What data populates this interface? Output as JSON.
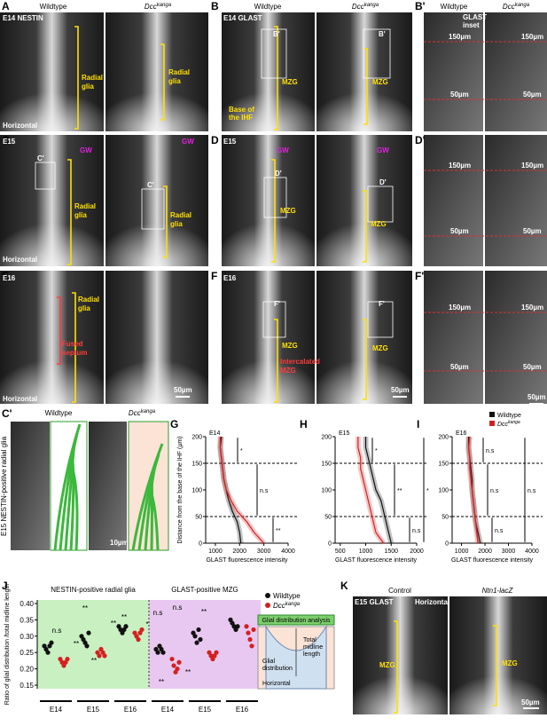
{
  "panels": {
    "A": {
      "label": "A",
      "header": [
        "Wildtype",
        {
          "base": "Dcc",
          "sup": "kanga"
        }
      ],
      "texts": [
        "E14 NESTIN",
        "Radial",
        "glia",
        "Radial",
        "glia",
        "Horizontal"
      ]
    },
    "B": {
      "label": "B",
      "header": [
        "Wildtype",
        {
          "base": "Dcc",
          "sup": "kanga"
        }
      ],
      "texts": [
        "E14 GLAST",
        "B'",
        "B'",
        "MZG",
        "MZG",
        "Base of",
        "the IHF"
      ]
    },
    "B_inset": {
      "label": "B'",
      "header": [
        "Wildtype",
        {
          "base": "Dcc",
          "sup": "kanga"
        }
      ],
      "texts": [
        "GLAST",
        "inset",
        "150µm",
        "150µm",
        "50µm",
        "50µm"
      ]
    },
    "C": {
      "label": "C",
      "texts": [
        "E15",
        "C'",
        "C'",
        "GW",
        "GW",
        "Radial",
        "glia",
        "Radial",
        "glia",
        "Horizontal"
      ]
    },
    "D": {
      "label": "D",
      "texts": [
        "E15",
        "GW",
        "GW",
        "D'",
        "D'",
        "MZG",
        "MZG"
      ]
    },
    "D_inset": {
      "label": "D'",
      "texts": [
        "150µm",
        "150µm",
        "50µm",
        "50µm"
      ]
    },
    "E": {
      "label": "E",
      "texts": [
        "E16",
        "Radial",
        "glia",
        "Fused",
        "septum",
        "Horizontal",
        "50µm"
      ]
    },
    "F": {
      "label": "F",
      "texts": [
        "E16",
        "F'",
        "F'",
        "MZG",
        "MZG",
        "Intercalated",
        "MZG",
        "50µm"
      ]
    },
    "F_inset": {
      "label": "F'",
      "texts": [
        "150µm",
        "150µm",
        "50µm",
        "50µm",
        "50µm"
      ]
    },
    "C_inset": {
      "label": "C'",
      "header": [
        "Wildtype",
        {
          "base": "Dcc",
          "sup": "kanga"
        }
      ],
      "texts": [
        "E15 NESTIN-positive radial glia",
        "10µm"
      ]
    },
    "schematic": {
      "title": "Glial distribution analysis",
      "texts": [
        "Total",
        "midline",
        "length",
        "Glial",
        "distribution",
        "Horizontal"
      ]
    },
    "K": {
      "label": "K",
      "header": [
        "Control",
        "Ntn1-lacZ"
      ],
      "texts": [
        "E15 GLAST",
        "Horizontal",
        "MZG",
        "MZG",
        "50µm"
      ]
    }
  },
  "chart_data": [
    {
      "type": "profile",
      "label": "G",
      "subtitle": "E14",
      "ylabel": "Distance from the base of the IHF (µm)",
      "xlabel": "GLAST fluorescence intensity",
      "y": [
        0,
        20,
        40,
        60,
        80,
        100,
        120,
        140,
        160,
        180,
        200
      ],
      "series": [
        {
          "color": "#111111",
          "values": [
            2050,
            2000,
            1900,
            1700,
            1550,
            1450,
            1350,
            1300,
            1250,
            1200,
            1250
          ]
        },
        {
          "color": "#d42020",
          "values": [
            3000,
            2600,
            2300,
            1900,
            1650,
            1450,
            1350,
            1300,
            1250,
            1200,
            1200
          ]
        }
      ],
      "xlim": [
        600,
        4000
      ],
      "xticks": [
        1000,
        2000,
        3000,
        4000
      ],
      "ylim": [
        0,
        200
      ],
      "yticks": [
        0,
        50,
        100,
        150,
        200
      ],
      "reference_lines": [
        50,
        150
      ],
      "annotations": [
        "*",
        "n.s",
        "**"
      ]
    },
    {
      "type": "profile",
      "label": "H",
      "subtitle": "E15",
      "xlabel": "GLAST fluorescence intensity",
      "y": [
        0,
        20,
        40,
        60,
        80,
        100,
        120,
        140,
        160,
        180,
        200
      ],
      "series": [
        {
          "color": "#111111",
          "values": [
            1500,
            1450,
            1400,
            1350,
            1300,
            1200,
            1150,
            1100,
            1050,
            1000,
            1000
          ]
        },
        {
          "color": "#d42020",
          "values": [
            1350,
            1200,
            1150,
            1100,
            1050,
            1000,
            950,
            900,
            900,
            850,
            850
          ]
        }
      ],
      "xlim": [
        400,
        2000
      ],
      "xticks": [
        500,
        1000,
        1500,
        2000
      ],
      "ylim": [
        0,
        200
      ],
      "yticks": [
        0,
        50,
        100,
        150,
        200
      ],
      "reference_lines": [
        50,
        150
      ],
      "annotations": [
        "*",
        "**",
        "n.s",
        "*"
      ]
    },
    {
      "type": "profile",
      "label": "I",
      "subtitle": "E16",
      "xlabel": "GLAST fluorescence intensity",
      "y": [
        0,
        20,
        40,
        60,
        80,
        100,
        120,
        140,
        160,
        180,
        200
      ],
      "series": [
        {
          "name": "Wildtype",
          "color": "#111111",
          "values": [
            1800,
            1700,
            1600,
            1550,
            1500,
            1450,
            1450,
            1400,
            1350,
            1300,
            1300
          ]
        },
        {
          "name": {
            "base": "Dcc",
            "sup": "kanga"
          },
          "color": "#d42020",
          "values": [
            1700,
            1650,
            1600,
            1550,
            1500,
            1450,
            1400,
            1350,
            1350,
            1300,
            1350
          ]
        }
      ],
      "xlim": [
        600,
        4000
      ],
      "xticks": [
        1000,
        2000,
        3000,
        4000
      ],
      "ylim": [
        0,
        200
      ],
      "yticks": [
        0,
        50,
        100,
        150,
        200
      ],
      "reference_lines": [
        50,
        150
      ],
      "annotations": [
        "n.s",
        "n.s",
        "n.s",
        "n.s"
      ]
    },
    {
      "type": "dot",
      "label": "J",
      "ylabel": "Ratio of glial distribution /total midline length",
      "series": [
        {
          "name": "Wildtype",
          "color": "#111111"
        },
        {
          "name": {
            "base": "Dcc",
            "sup": "kanga"
          },
          "color": "#d42020"
        }
      ],
      "groups": [
        {
          "title": "NESTIN-positive radial glia",
          "background": "#c8f0c0",
          "categories": [
            "E14",
            "E15",
            "E16"
          ],
          "values": [
            [
              [
                0.27,
                0.26,
                0.25,
                0.27,
                0.28
              ],
              [
                0.3,
                0.29,
                0.28,
                0.27,
                0.31
              ],
              [
                0.33,
                0.32,
                0.31,
                0.32,
                0.33
              ]
            ],
            [
              [
                0.23,
                0.22,
                0.21,
                0.22,
                0.23
              ],
              [
                0.25,
                0.24,
                0.26,
                0.25,
                0.24
              ],
              [
                0.31,
                0.3,
                0.29,
                0.31,
                0.32
              ]
            ]
          ]
        },
        {
          "title": "GLAST-positive MZG",
          "background": "#e8c8f0",
          "categories": [
            "E14",
            "E15",
            "E16"
          ],
          "values": [
            [
              [
                0.26,
                0.25,
                0.27,
                0.26,
                0.25
              ],
              [
                0.31,
                0.3,
                0.28,
                0.32,
                0.29
              ],
              [
                0.35,
                0.34,
                0.33,
                0.32,
                0.33
              ]
            ],
            [
              [
                0.23,
                0.21,
                0.19,
                0.2,
                0.22
              ],
              [
                0.25,
                0.24,
                0.23,
                0.24,
                0.25
              ],
              [
                0.33,
                0.31,
                0.29,
                0.27,
                0.32
              ]
            ]
          ]
        }
      ],
      "ylim": [
        0.15,
        0.4
      ],
      "yticks": [
        0.15,
        {
          "value": 0.2,
          "label": "0.20"
        },
        0.25,
        {
          "value": 0.3,
          "label": "0.30"
        },
        0.35,
        {
          "value": 0.4,
          "label": "0.40"
        }
      ],
      "annotations": [
        "n.s",
        "**",
        "**",
        "**",
        "**",
        "**",
        "*",
        "n.s",
        "n.s",
        "**",
        "**",
        "**"
      ]
    }
  ]
}
